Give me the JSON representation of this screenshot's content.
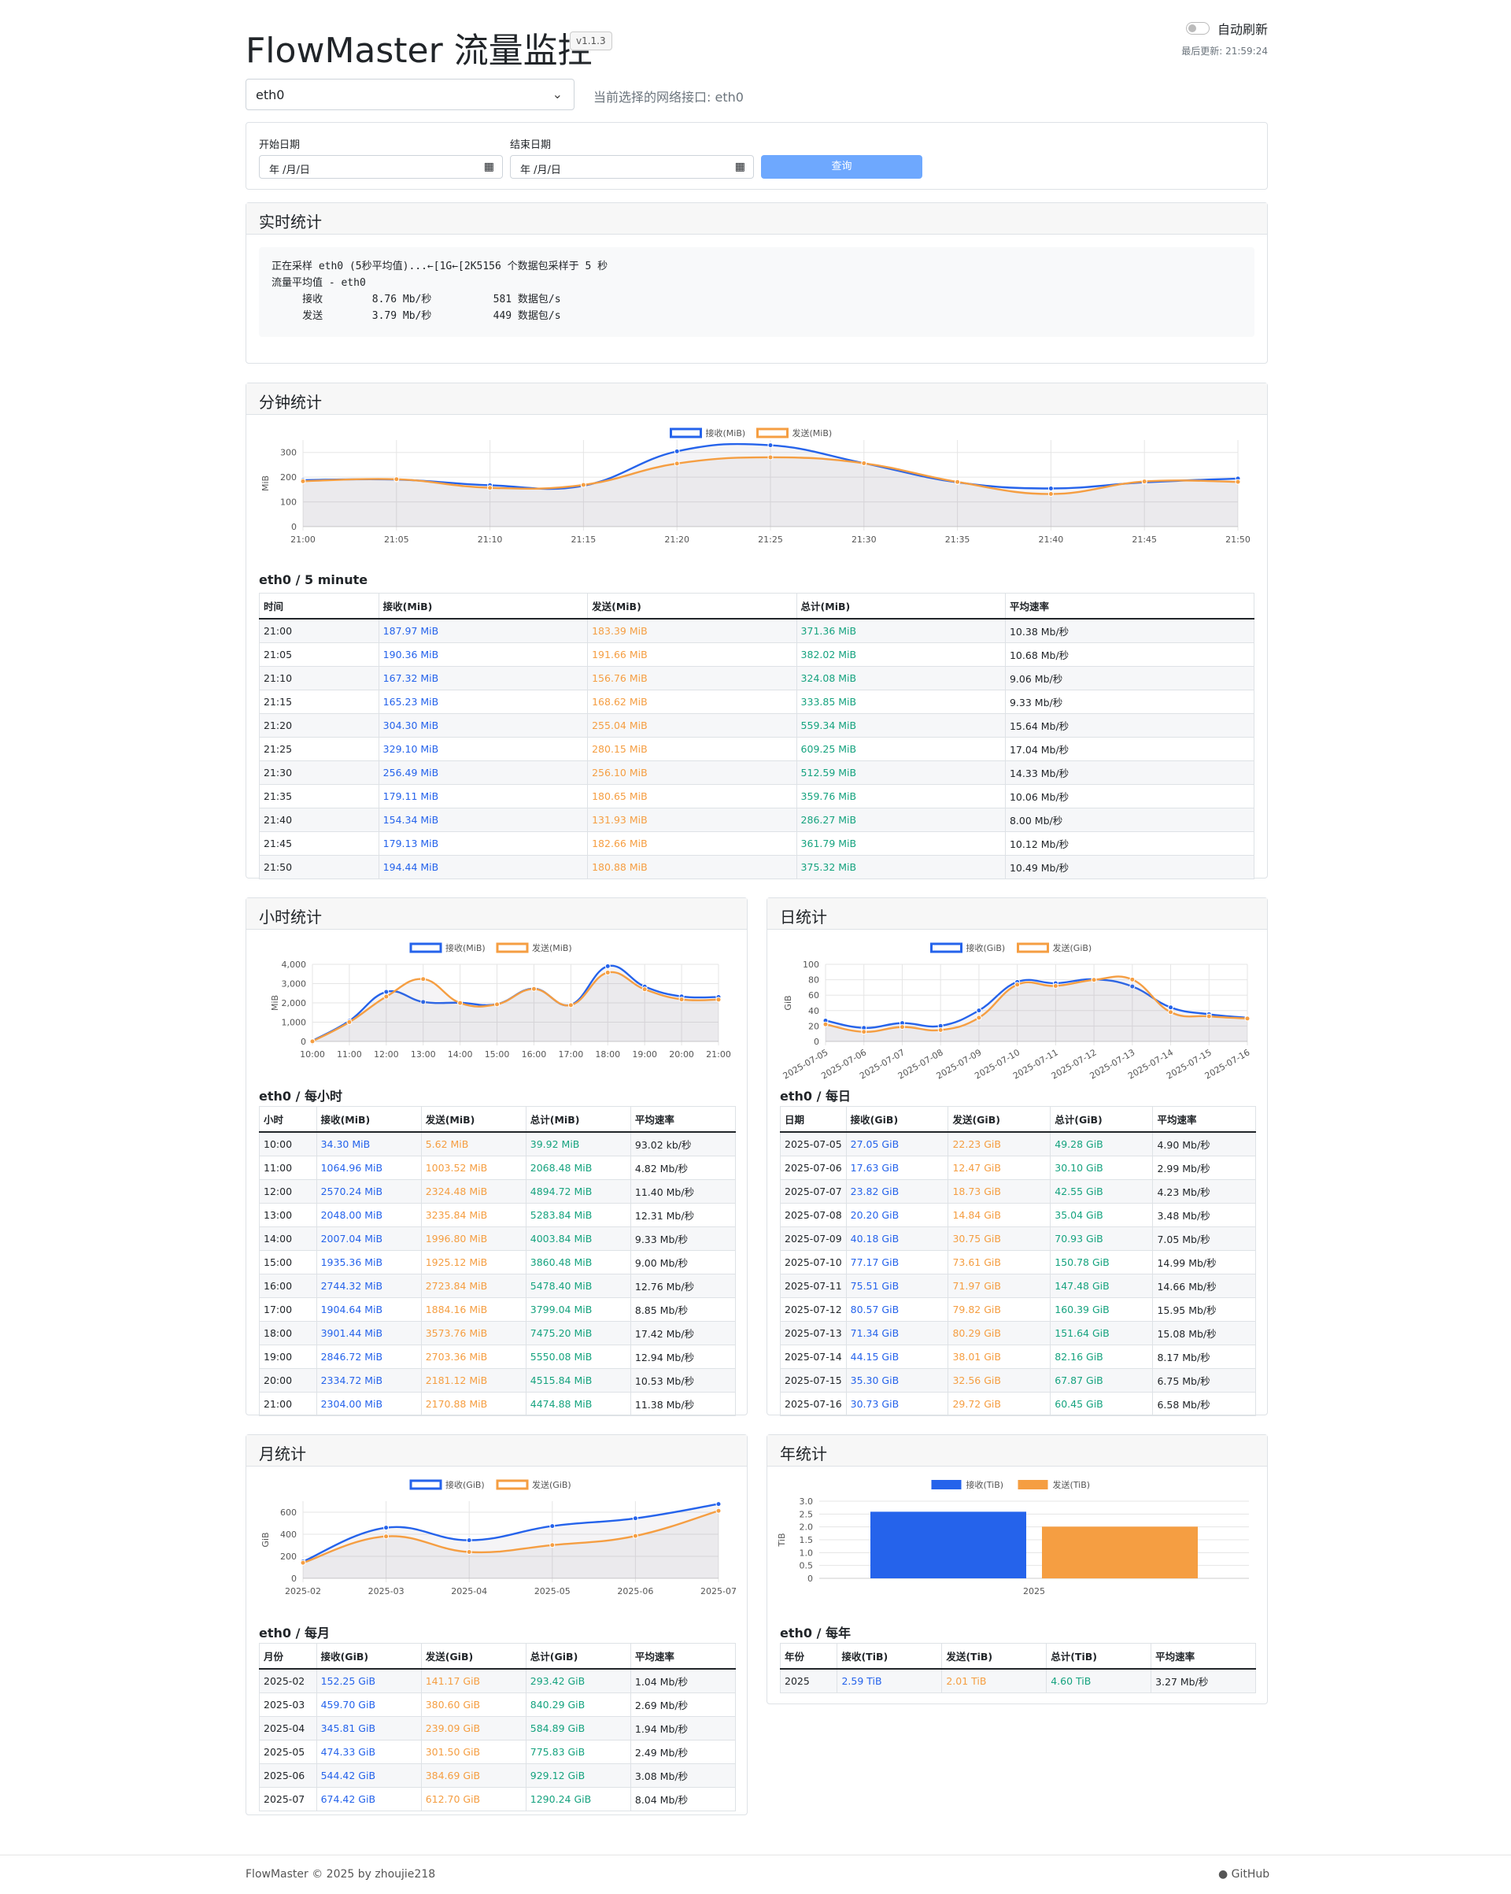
{
  "app": {
    "title": "FlowMaster 流量监控",
    "version": "v1.1.3",
    "auto_refresh": "自动刷新",
    "last_update": "最后更新: 21:59:24"
  },
  "iface": {
    "selected": "eth0",
    "current_text": "当前选择的网络接口: eth0"
  },
  "dates": {
    "start_label": "开始日期",
    "end_label": "结束日期",
    "start_value": "年 /月/日",
    "end_value": "年 /月/日",
    "query": "查询"
  },
  "realtime": {
    "header": "实时统计",
    "text": "正在采样 eth0 (5秒平均值)...←[1G←[2K5156 个数据包采样于 5 秒\n流量平均值 - eth0\n     接收        8.76 Mb/秒          581 数据包/s\n     发送        3.79 Mb/秒          449 数据包/s"
  },
  "minute": {
    "header": "分钟统计",
    "subtitle": "eth0 / 5 minute",
    "cols": [
      "时间",
      "接收(MiB)",
      "发送(MiB)",
      "总计(MiB)",
      "平均速率"
    ],
    "rows": [
      [
        "21:00",
        "187.97 MiB",
        "183.39 MiB",
        "371.36 MiB",
        "10.38 Mb/秒"
      ],
      [
        "21:05",
        "190.36 MiB",
        "191.66 MiB",
        "382.02 MiB",
        "10.68 Mb/秒"
      ],
      [
        "21:10",
        "167.32 MiB",
        "156.76 MiB",
        "324.08 MiB",
        "9.06 Mb/秒"
      ],
      [
        "21:15",
        "165.23 MiB",
        "168.62 MiB",
        "333.85 MiB",
        "9.33 Mb/秒"
      ],
      [
        "21:20",
        "304.30 MiB",
        "255.04 MiB",
        "559.34 MiB",
        "15.64 Mb/秒"
      ],
      [
        "21:25",
        "329.10 MiB",
        "280.15 MiB",
        "609.25 MiB",
        "17.04 Mb/秒"
      ],
      [
        "21:30",
        "256.49 MiB",
        "256.10 MiB",
        "512.59 MiB",
        "14.33 Mb/秒"
      ],
      [
        "21:35",
        "179.11 MiB",
        "180.65 MiB",
        "359.76 MiB",
        "10.06 Mb/秒"
      ],
      [
        "21:40",
        "154.34 MiB",
        "131.93 MiB",
        "286.27 MiB",
        "8.00 Mb/秒"
      ],
      [
        "21:45",
        "179.13 MiB",
        "182.66 MiB",
        "361.79 MiB",
        "10.12 Mb/秒"
      ],
      [
        "21:50",
        "194.44 MiB",
        "180.88 MiB",
        "375.32 MiB",
        "10.49 Mb/秒"
      ]
    ]
  },
  "hour": {
    "header": "小时统计",
    "subtitle": "eth0 / 每小时",
    "cols": [
      "小时",
      "接收(MiB)",
      "发送(MiB)",
      "总计(MiB)",
      "平均速率"
    ],
    "rows": [
      [
        "10:00",
        "34.30 MiB",
        "5.62 MiB",
        "39.92 MiB",
        "93.02 kb/秒"
      ],
      [
        "11:00",
        "1064.96 MiB",
        "1003.52 MiB",
        "2068.48 MiB",
        "4.82 Mb/秒"
      ],
      [
        "12:00",
        "2570.24 MiB",
        "2324.48 MiB",
        "4894.72 MiB",
        "11.40 Mb/秒"
      ],
      [
        "13:00",
        "2048.00 MiB",
        "3235.84 MiB",
        "5283.84 MiB",
        "12.31 Mb/秒"
      ],
      [
        "14:00",
        "2007.04 MiB",
        "1996.80 MiB",
        "4003.84 MiB",
        "9.33 Mb/秒"
      ],
      [
        "15:00",
        "1935.36 MiB",
        "1925.12 MiB",
        "3860.48 MiB",
        "9.00 Mb/秒"
      ],
      [
        "16:00",
        "2744.32 MiB",
        "2723.84 MiB",
        "5478.40 MiB",
        "12.76 Mb/秒"
      ],
      [
        "17:00",
        "1904.64 MiB",
        "1884.16 MiB",
        "3799.04 MiB",
        "8.85 Mb/秒"
      ],
      [
        "18:00",
        "3901.44 MiB",
        "3573.76 MiB",
        "7475.20 MiB",
        "17.42 Mb/秒"
      ],
      [
        "19:00",
        "2846.72 MiB",
        "2703.36 MiB",
        "5550.08 MiB",
        "12.94 Mb/秒"
      ],
      [
        "20:00",
        "2334.72 MiB",
        "2181.12 MiB",
        "4515.84 MiB",
        "10.53 Mb/秒"
      ],
      [
        "21:00",
        "2304.00 MiB",
        "2170.88 MiB",
        "4474.88 MiB",
        "11.38 Mb/秒"
      ]
    ]
  },
  "day": {
    "header": "日统计",
    "subtitle": "eth0 / 每日",
    "cols": [
      "日期",
      "接收(GiB)",
      "发送(GiB)",
      "总计(GiB)",
      "平均速率"
    ],
    "rows": [
      [
        "2025-07-05",
        "27.05 GiB",
        "22.23 GiB",
        "49.28 GiB",
        "4.90 Mb/秒"
      ],
      [
        "2025-07-06",
        "17.63 GiB",
        "12.47 GiB",
        "30.10 GiB",
        "2.99 Mb/秒"
      ],
      [
        "2025-07-07",
        "23.82 GiB",
        "18.73 GiB",
        "42.55 GiB",
        "4.23 Mb/秒"
      ],
      [
        "2025-07-08",
        "20.20 GiB",
        "14.84 GiB",
        "35.04 GiB",
        "3.48 Mb/秒"
      ],
      [
        "2025-07-09",
        "40.18 GiB",
        "30.75 GiB",
        "70.93 GiB",
        "7.05 Mb/秒"
      ],
      [
        "2025-07-10",
        "77.17 GiB",
        "73.61 GiB",
        "150.78 GiB",
        "14.99 Mb/秒"
      ],
      [
        "2025-07-11",
        "75.51 GiB",
        "71.97 GiB",
        "147.48 GiB",
        "14.66 Mb/秒"
      ],
      [
        "2025-07-12",
        "80.57 GiB",
        "79.82 GiB",
        "160.39 GiB",
        "15.95 Mb/秒"
      ],
      [
        "2025-07-13",
        "71.34 GiB",
        "80.29 GiB",
        "151.64 GiB",
        "15.08 Mb/秒"
      ],
      [
        "2025-07-14",
        "44.15 GiB",
        "38.01 GiB",
        "82.16 GiB",
        "8.17 Mb/秒"
      ],
      [
        "2025-07-15",
        "35.30 GiB",
        "32.56 GiB",
        "67.87 GiB",
        "6.75 Mb/秒"
      ],
      [
        "2025-07-16",
        "30.73 GiB",
        "29.72 GiB",
        "60.45 GiB",
        "6.58 Mb/秒"
      ]
    ]
  },
  "month": {
    "header": "月统计",
    "subtitle": "eth0 / 每月",
    "cols": [
      "月份",
      "接收(GiB)",
      "发送(GiB)",
      "总计(GiB)",
      "平均速率"
    ],
    "rows": [
      [
        "2025-02",
        "152.25 GiB",
        "141.17 GiB",
        "293.42 GiB",
        "1.04 Mb/秒"
      ],
      [
        "2025-03",
        "459.70 GiB",
        "380.60 GiB",
        "840.29 GiB",
        "2.69 Mb/秒"
      ],
      [
        "2025-04",
        "345.81 GiB",
        "239.09 GiB",
        "584.89 GiB",
        "1.94 Mb/秒"
      ],
      [
        "2025-05",
        "474.33 GiB",
        "301.50 GiB",
        "775.83 GiB",
        "2.49 Mb/秒"
      ],
      [
        "2025-06",
        "544.42 GiB",
        "384.69 GiB",
        "929.12 GiB",
        "3.08 Mb/秒"
      ],
      [
        "2025-07",
        "674.42 GiB",
        "612.70 GiB",
        "1290.24 GiB",
        "8.04 Mb/秒"
      ]
    ]
  },
  "year": {
    "header": "年统计",
    "subtitle": "eth0 / 每年",
    "cols": [
      "年份",
      "接收(TiB)",
      "发送(TiB)",
      "总计(TiB)",
      "平均速率"
    ],
    "rows": [
      [
        "2025",
        "2.59 TiB",
        "2.01 TiB",
        "4.60 TiB",
        "3.27 Mb/秒"
      ]
    ]
  },
  "colors": {
    "rx": "#2563eb",
    "tx": "#f59e42",
    "total": "#16a37f"
  },
  "chart_data": [
    {
      "id": "minute",
      "type": "line",
      "title": "",
      "xlabel": "",
      "ylabel": "MiB",
      "ylim": [
        0,
        350
      ],
      "yticks": [
        0,
        100,
        200,
        300
      ],
      "categories": [
        "21:00",
        "21:05",
        "21:10",
        "21:15",
        "21:20",
        "21:25",
        "21:30",
        "21:35",
        "21:40",
        "21:45",
        "21:50"
      ],
      "series": [
        {
          "name": "接收(MiB)",
          "values": [
            187.97,
            190.36,
            167.32,
            165.23,
            304.3,
            329.1,
            256.49,
            179.11,
            154.34,
            179.13,
            194.44
          ]
        },
        {
          "name": "发送(MiB)",
          "values": [
            183.39,
            191.66,
            156.76,
            168.62,
            255.04,
            280.15,
            256.1,
            180.65,
            131.93,
            182.66,
            180.88
          ]
        }
      ]
    },
    {
      "id": "hour",
      "type": "line",
      "title": "",
      "xlabel": "",
      "ylabel": "MiB",
      "ylim": [
        0,
        4000
      ],
      "yticks": [
        0,
        1000,
        2000,
        3000,
        4000
      ],
      "ytick_labels": [
        "0",
        "1,000",
        "2,000",
        "3,000",
        "4,000"
      ],
      "categories": [
        "10:00",
        "11:00",
        "12:00",
        "13:00",
        "14:00",
        "15:00",
        "16:00",
        "17:00",
        "18:00",
        "19:00",
        "20:00",
        "21:00"
      ],
      "series": [
        {
          "name": "接收(MiB)",
          "values": [
            34.3,
            1064.96,
            2570.24,
            2048.0,
            2007.04,
            1935.36,
            2744.32,
            1904.64,
            3901.44,
            2846.72,
            2334.72,
            2304.0
          ]
        },
        {
          "name": "发送(MiB)",
          "values": [
            5.62,
            1003.52,
            2324.48,
            3235.84,
            1996.8,
            1925.12,
            2723.84,
            1884.16,
            3573.76,
            2703.36,
            2181.12,
            2170.88
          ]
        }
      ]
    },
    {
      "id": "day",
      "type": "line",
      "title": "",
      "xlabel": "",
      "ylabel": "GiB",
      "ylim": [
        0,
        100
      ],
      "yticks": [
        0,
        20,
        40,
        60,
        80,
        100
      ],
      "categories": [
        "2025-07-05",
        "2025-07-06",
        "2025-07-07",
        "2025-07-08",
        "2025-07-09",
        "2025-07-10",
        "2025-07-11",
        "2025-07-12",
        "2025-07-13",
        "2025-07-14",
        "2025-07-15",
        "2025-07-16"
      ],
      "series": [
        {
          "name": "接收(GiB)",
          "values": [
            27.05,
            17.63,
            23.82,
            20.2,
            40.18,
            77.17,
            75.51,
            80.57,
            71.34,
            44.15,
            35.3,
            30.73
          ]
        },
        {
          "name": "发送(GiB)",
          "values": [
            22.23,
            12.47,
            18.73,
            14.84,
            30.75,
            73.61,
            71.97,
            79.82,
            80.29,
            38.01,
            32.56,
            29.72
          ]
        }
      ]
    },
    {
      "id": "month",
      "type": "line",
      "title": "",
      "xlabel": "",
      "ylabel": "GiB",
      "ylim": [
        0,
        700
      ],
      "yticks": [
        0,
        200,
        400,
        600
      ],
      "categories": [
        "2025-02",
        "2025-03",
        "2025-04",
        "2025-05",
        "2025-06",
        "2025-07"
      ],
      "series": [
        {
          "name": "接收(GiB)",
          "values": [
            152.25,
            459.7,
            345.81,
            474.33,
            544.42,
            674.42
          ]
        },
        {
          "name": "发送(GiB)",
          "values": [
            141.17,
            380.6,
            239.09,
            301.5,
            384.69,
            612.7
          ]
        }
      ]
    },
    {
      "id": "year",
      "type": "bar",
      "title": "",
      "xlabel": "",
      "ylabel": "TiB",
      "ylim": [
        0,
        3.0
      ],
      "yticks": [
        0,
        0.5,
        1.0,
        1.5,
        2.0,
        2.5,
        3.0
      ],
      "ytick_labels": [
        "0",
        "0.5",
        "1.0",
        "1.5",
        "2.0",
        "2.5",
        "3.0"
      ],
      "categories": [
        "2025"
      ],
      "series": [
        {
          "name": "接收(TiB)",
          "values": [
            2.59
          ]
        },
        {
          "name": "发送(TiB)",
          "values": [
            2.01
          ]
        }
      ]
    }
  ],
  "footer": {
    "left": "FlowMaster    © 2025 by zhoujie218",
    "github": "GitHub"
  }
}
